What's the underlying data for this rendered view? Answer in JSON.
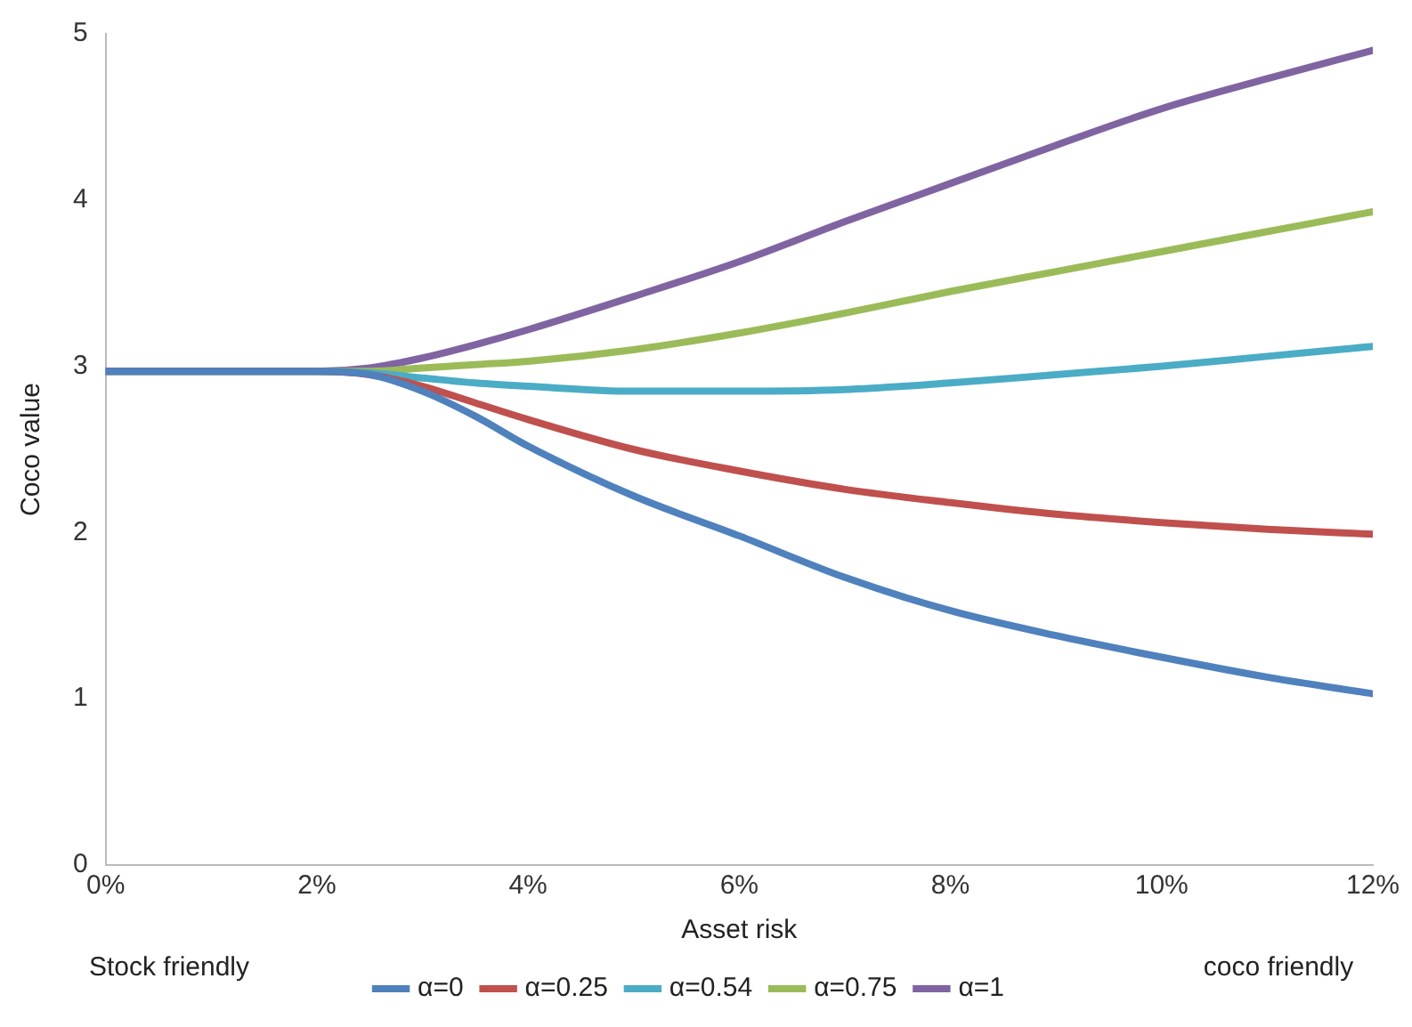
{
  "chart_data": {
    "type": "line",
    "xlabel": "Asset risk",
    "ylabel": "Coco value",
    "x": [
      0,
      1,
      2,
      2.5,
      3,
      3.5,
      4,
      5,
      6,
      7,
      8,
      9,
      10,
      11,
      12
    ],
    "xlim": [
      0,
      12
    ],
    "xticks": [
      {
        "value": 0,
        "label": "0%"
      },
      {
        "value": 2,
        "label": "2%"
      },
      {
        "value": 4,
        "label": "4%"
      },
      {
        "value": 6,
        "label": "6%"
      },
      {
        "value": 8,
        "label": "8%"
      },
      {
        "value": 10,
        "label": "10%"
      },
      {
        "value": 12,
        "label": "12%"
      }
    ],
    "ylim": [
      0,
      5
    ],
    "yticks": [
      0,
      1,
      2,
      3,
      4,
      5
    ],
    "grid": false,
    "legend": "bottom",
    "marker": "none",
    "line_style": "solid",
    "annotations": [
      "Stock friendly",
      "coco friendly"
    ],
    "series": [
      {
        "name": "α=0",
        "color": "#4f81bd",
        "values": [
          2.97,
          2.97,
          2.97,
          2.95,
          2.85,
          2.7,
          2.52,
          2.22,
          1.98,
          1.73,
          1.53,
          1.38,
          1.25,
          1.13,
          1.03
        ]
      },
      {
        "name": "α=0.25",
        "color": "#c0504d",
        "values": [
          2.97,
          2.97,
          2.97,
          2.95,
          2.88,
          2.78,
          2.68,
          2.5,
          2.37,
          2.26,
          2.18,
          2.11,
          2.06,
          2.02,
          1.99
        ]
      },
      {
        "name": "α=0.54",
        "color": "#4bacc6",
        "values": [
          2.97,
          2.97,
          2.97,
          2.96,
          2.93,
          2.9,
          2.88,
          2.85,
          2.85,
          2.86,
          2.9,
          2.95,
          3.0,
          3.06,
          3.12
        ]
      },
      {
        "name": "α=0.75",
        "color": "#9bbb59",
        "values": [
          2.97,
          2.97,
          2.97,
          2.97,
          2.99,
          3.01,
          3.03,
          3.1,
          3.2,
          3.32,
          3.45,
          3.57,
          3.69,
          3.81,
          3.93
        ]
      },
      {
        "name": "α=1",
        "color": "#8064a2",
        "values": [
          2.97,
          2.97,
          2.97,
          2.99,
          3.05,
          3.13,
          3.22,
          3.42,
          3.63,
          3.87,
          4.1,
          4.33,
          4.55,
          4.73,
          4.9
        ]
      }
    ]
  }
}
